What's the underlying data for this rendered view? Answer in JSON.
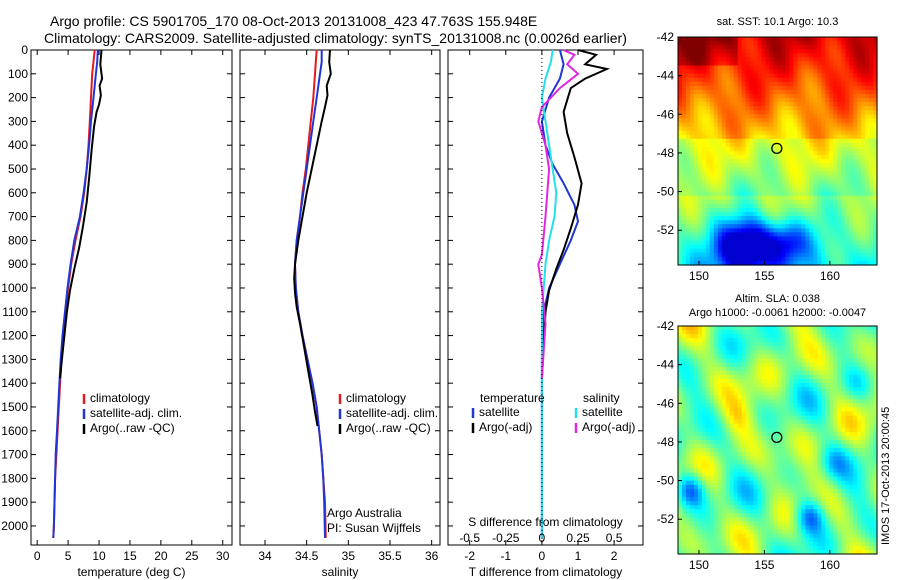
{
  "header": {
    "line1": "Argo profile: CS 5901705_170 08-Oct-2013 20131008_423 47.763S 155.948E",
    "line2": "Climatology: CARS2009. Satellite-adjusted climatology: synTS_20131008.nc (0.0026d earlier)"
  },
  "stamp": "IMOS 17-Oct-2013 20:00:45",
  "colors": {
    "climatology": "#e41a1c",
    "satellite": "#1f35d6",
    "argo": "#000000",
    "salinity_satellite": "#22e0ea",
    "salinity_argo": "#e026e0"
  },
  "chart_data": [
    {
      "type": "line",
      "name": "temperature-profile",
      "xlabel": "temperature (deg C)",
      "ylabel": "",
      "xlim": [
        -1,
        31.5
      ],
      "ylim": [
        2080,
        0
      ],
      "xticks": [
        0,
        5,
        10,
        15,
        20,
        25,
        30
      ],
      "yticks": [
        0,
        100,
        200,
        300,
        400,
        500,
        600,
        700,
        800,
        900,
        1000,
        1100,
        1200,
        1300,
        1400,
        1500,
        1600,
        1700,
        1800,
        1900,
        2000
      ],
      "legend": {
        "position": "lower-center",
        "entries": [
          "climatology",
          "satellite-adj. clim.",
          "Argo(..raw -QC)"
        ]
      },
      "series": [
        {
          "name": "climatology",
          "color_key": "climatology",
          "x": [
            9.3,
            9.1,
            8.9,
            8.7,
            8.5,
            8.3,
            8.0,
            7.6,
            7.0,
            6.2,
            5.5,
            5.0,
            4.6,
            4.2,
            3.9,
            3.7,
            3.5,
            3.3,
            3.1,
            2.9,
            2.8,
            2.7,
            2.6
          ],
          "y": [
            0,
            50,
            100,
            200,
            300,
            400,
            500,
            600,
            700,
            800,
            900,
            1000,
            1100,
            1200,
            1300,
            1400,
            1500,
            1600,
            1700,
            1800,
            1900,
            2000,
            2050
          ]
        },
        {
          "name": "satellite-adj. clim.",
          "color_key": "satellite",
          "x": [
            9.8,
            9.7,
            9.5,
            9.1,
            8.7,
            8.4,
            8.0,
            7.5,
            6.9,
            6.0,
            5.4,
            4.9,
            4.5,
            4.1,
            3.8,
            3.6,
            3.4,
            3.2,
            3.0,
            2.9,
            2.8,
            2.7,
            2.6
          ],
          "y": [
            0,
            50,
            100,
            200,
            300,
            400,
            500,
            600,
            700,
            800,
            900,
            1000,
            1100,
            1200,
            1300,
            1400,
            1500,
            1600,
            1700,
            1800,
            1900,
            2000,
            2050
          ]
        },
        {
          "name": "Argo(..raw -QC)",
          "color_key": "argo",
          "x": [
            10.4,
            10.2,
            10.5,
            10.1,
            10.3,
            10.0,
            9.6,
            9.2,
            8.8,
            8.4,
            8.0,
            7.4,
            6.8,
            6.0,
            5.3,
            4.8,
            4.4,
            4.0,
            3.7
          ],
          "y": [
            0,
            60,
            120,
            150,
            190,
            230,
            260,
            320,
            420,
            540,
            640,
            740,
            830,
            920,
            1010,
            1100,
            1200,
            1300,
            1380
          ]
        }
      ]
    },
    {
      "type": "line",
      "name": "salinity-profile",
      "xlabel": "salinity",
      "ylabel": "",
      "xlim": [
        33.7,
        36.1
      ],
      "ylim": [
        2080,
        0
      ],
      "xticks": [
        34,
        34.5,
        35,
        35.5,
        36
      ],
      "legend": {
        "position": "lower-center",
        "entries": [
          "climatology",
          "satellite-adj. clim.",
          "Argo(..raw -QC)"
        ]
      },
      "annotation": [
        "Argo Australia",
        "PI: Susan Wijffels"
      ],
      "series": [
        {
          "name": "climatology",
          "color_key": "climatology",
          "x": [
            34.62,
            34.61,
            34.6,
            34.58,
            34.55,
            34.52,
            34.49,
            34.45,
            34.42,
            34.38,
            34.36,
            34.37,
            34.4,
            34.45,
            34.51,
            34.57,
            34.62,
            34.65,
            34.68,
            34.7,
            34.72,
            34.73
          ],
          "y": [
            0,
            50,
            100,
            200,
            300,
            400,
            500,
            600,
            700,
            800,
            900,
            1000,
            1100,
            1200,
            1300,
            1400,
            1500,
            1600,
            1700,
            1800,
            1900,
            2050
          ]
        },
        {
          "name": "satellite-adj. clim.",
          "color_key": "satellite",
          "x": [
            34.68,
            34.68,
            34.66,
            34.62,
            34.58,
            34.54,
            34.5,
            34.46,
            34.42,
            34.38,
            34.36,
            34.37,
            34.4,
            34.45,
            34.51,
            34.57,
            34.62,
            34.65,
            34.68,
            34.7,
            34.71,
            34.72
          ],
          "y": [
            0,
            50,
            100,
            200,
            300,
            400,
            500,
            600,
            700,
            800,
            900,
            1000,
            1100,
            1200,
            1300,
            1400,
            1500,
            1600,
            1700,
            1800,
            1900,
            2050
          ]
        },
        {
          "name": "Argo(..raw -QC)",
          "color_key": "argo",
          "x": [
            34.78,
            34.77,
            34.79,
            34.74,
            34.75,
            34.72,
            34.68,
            34.62,
            34.56,
            34.5,
            34.45,
            34.4,
            34.36,
            34.35,
            34.36,
            34.38,
            34.42,
            34.47,
            34.52,
            34.57,
            34.6,
            34.63
          ],
          "y": [
            0,
            50,
            100,
            150,
            190,
            240,
            300,
            400,
            500,
            600,
            700,
            800,
            900,
            960,
            1020,
            1080,
            1150,
            1250,
            1350,
            1450,
            1520,
            1580
          ]
        }
      ]
    },
    {
      "type": "line",
      "name": "difference-profile",
      "xlabel": "T difference from climatology",
      "top_label": "S difference from climatology",
      "xlim": [
        -2.6,
        2.8
      ],
      "ylim": [
        2080,
        0
      ],
      "xticks": [
        -2,
        -1,
        0,
        1,
        2
      ],
      "top_ticks": {
        "labels": [
          "-0.5",
          "-0.25",
          "0",
          "0.25",
          "0.5"
        ],
        "positions": [
          -2,
          -1,
          0,
          1,
          2
        ]
      },
      "legend": {
        "position": "lower",
        "groups": [
          {
            "title": "temperature",
            "entries": [
              "satellite",
              "Argo(-adj)"
            ]
          },
          {
            "title": "salinity",
            "entries": [
              "satellite",
              "Argo(-adj)"
            ]
          }
        ]
      },
      "series": [
        {
          "name": "temperature satellite",
          "color_key": "satellite",
          "x": [
            0.5,
            0.6,
            0.5,
            0.2,
            0.0,
            0.1,
            0.3,
            0.6,
            0.9,
            1.0,
            0.8,
            0.5,
            0.2,
            0.05,
            0.0,
            0.0,
            0.0
          ],
          "y": [
            0,
            60,
            120,
            200,
            300,
            400,
            480,
            560,
            650,
            720,
            800,
            900,
            1000,
            1100,
            1300,
            1600,
            2050
          ]
        },
        {
          "name": "temperature Argo(-adj)",
          "color_key": "argo",
          "x": [
            1.0,
            1.5,
            1.2,
            1.8,
            1.2,
            0.8,
            0.6,
            0.7,
            0.9,
            1.1,
            1.0,
            0.8,
            0.6,
            0.4,
            0.2,
            0.1,
            0.0
          ],
          "y": [
            0,
            20,
            60,
            80,
            120,
            160,
            260,
            350,
            450,
            560,
            650,
            750,
            840,
            920,
            1010,
            1100,
            1380
          ]
        },
        {
          "name": "salinity satellite",
          "color_key": "salinity_satellite",
          "x": [
            0.3,
            0.25,
            0.1,
            0.0,
            0.1,
            0.2,
            0.3,
            0.4,
            0.35,
            0.2,
            0.1,
            0.05,
            0.0,
            0.0,
            0.0
          ],
          "y": [
            0,
            50,
            120,
            200,
            300,
            400,
            500,
            600,
            700,
            800,
            900,
            1000,
            1100,
            1500,
            2050
          ]
        },
        {
          "name": "salinity Argo(-adj)",
          "color_key": "salinity_argo",
          "x": [
            0.6,
            0.9,
            0.7,
            1.0,
            0.5,
            0.0,
            -0.1,
            0.1,
            0.2,
            0.1,
            0.0,
            -0.1,
            0.0,
            0.1,
            0.0
          ],
          "y": [
            0,
            20,
            60,
            100,
            160,
            240,
            300,
            400,
            500,
            700,
            860,
            900,
            1000,
            1150,
            1380
          ]
        }
      ]
    },
    {
      "type": "heatmap",
      "name": "sst-map",
      "title": "sat. SST: 10.1  Argo: 10.3",
      "xlim": [
        148.4,
        163.6
      ],
      "ylim": [
        -53.8,
        -42
      ],
      "xticks": [
        150,
        155,
        160
      ],
      "yticks": [
        -42,
        -44,
        -46,
        -48,
        -50,
        -52
      ],
      "colormap": "jet",
      "marker": {
        "lon": 155.948,
        "lat": -47.763
      }
    },
    {
      "type": "heatmap",
      "name": "sla-map",
      "title": "Altim. SLA: 0.038",
      "subtitle": "Argo h1000: -0.0061  h2000: -0.0047",
      "xlim": [
        148.4,
        163.6
      ],
      "ylim": [
        -53.8,
        -42
      ],
      "xticks": [
        150,
        155,
        160
      ],
      "yticks": [
        -42,
        -44,
        -46,
        -48,
        -50,
        -52
      ],
      "colormap": "jet",
      "marker": {
        "lon": 155.948,
        "lat": -47.763
      }
    }
  ]
}
